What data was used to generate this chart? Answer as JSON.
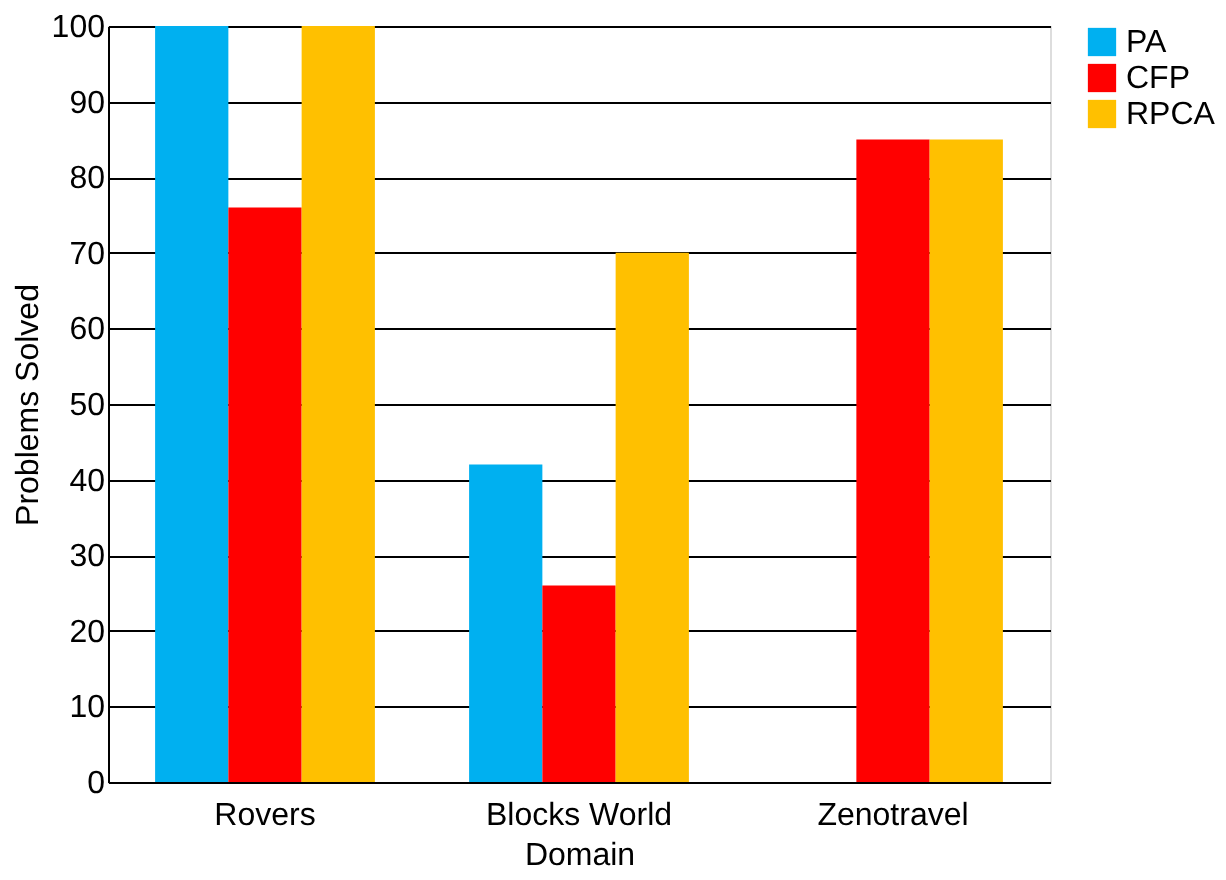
{
  "chart_data": {
    "type": "bar",
    "xlabel": "Domain",
    "ylabel": "Problems Solved",
    "categories": [
      "Rovers",
      "Blocks World",
      "Zenotravel"
    ],
    "series": [
      {
        "name": "PA",
        "color": "#00b0f0",
        "values": [
          100,
          42,
          0
        ]
      },
      {
        "name": "CFP",
        "color": "#ff0000",
        "values": [
          76,
          26,
          85
        ]
      },
      {
        "name": "RPCA",
        "color": "#ffc000",
        "values": [
          100,
          70,
          85
        ]
      }
    ],
    "ylim": [
      0,
      100
    ],
    "yticks": [
      0,
      10,
      20,
      30,
      40,
      50,
      60,
      70,
      80,
      90,
      100
    ],
    "grid": "y",
    "legend": "right"
  }
}
